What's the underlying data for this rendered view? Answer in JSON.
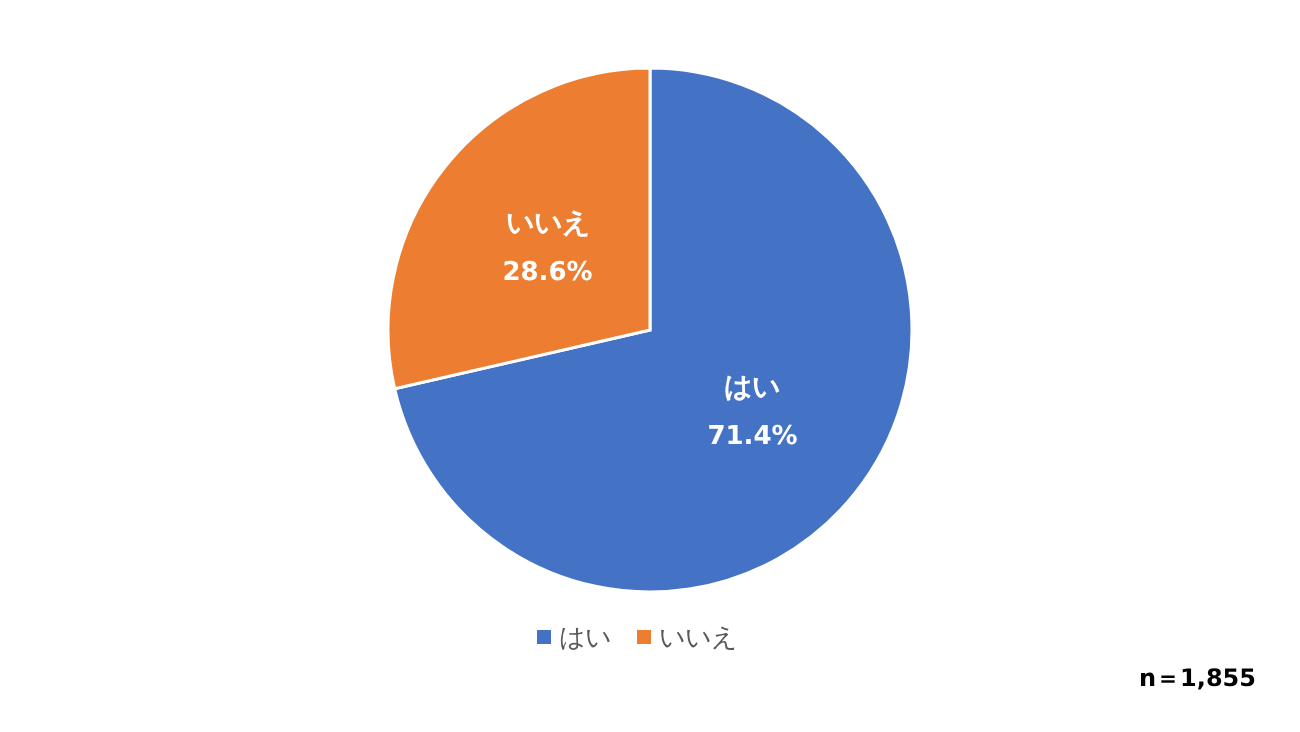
{
  "chart_data": {
    "type": "pie",
    "categories": [
      "はい",
      "いいえ"
    ],
    "values": [
      71.4,
      28.6
    ],
    "colors": [
      "#4472c4",
      "#ed7d31"
    ],
    "value_labels": [
      "71.4%",
      "28.6%"
    ],
    "legend": "bottom",
    "annotations": [
      "n＝1,855"
    ]
  }
}
